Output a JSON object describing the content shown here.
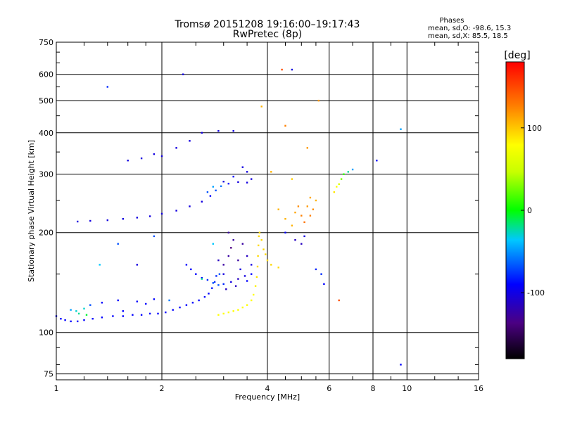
{
  "chart_data": {
    "type": "scatter",
    "title": "Tromsø 20151208 19:16:00–19:17:43",
    "subtitle": "RwPretec (8p)",
    "xlabel": "Frequency [MHz]",
    "ylabel": "Stationary phase Virtual Height [km]",
    "x_scale": "log",
    "y_scale": "log",
    "xlim": [
      1,
      16
    ],
    "ylim": [
      72,
      750
    ],
    "x_ticks": [
      1,
      2,
      4,
      6,
      8,
      10,
      16
    ],
    "x_tick_labels": [
      "1",
      "2",
      "4",
      "6",
      "8",
      "10",
      "16"
    ],
    "y_ticks": [
      75,
      100,
      200,
      300,
      400,
      500,
      600,
      750
    ],
    "y_tick_labels": [
      "75",
      "100",
      "200",
      "300",
      "400",
      "500",
      "600",
      "750"
    ],
    "grid": true,
    "stats": {
      "title": "Phases",
      "line1": "mean, sd,O:  -98.6, 15.3",
      "line2": "mean, sd,X:   85.5, 18.5"
    },
    "colorbar": {
      "label": "[deg]",
      "range": [
        -180,
        180
      ],
      "ticks": [
        100,
        0,
        -100
      ],
      "tick_labels": [
        "100",
        "0",
        "-100"
      ]
    },
    "series": [
      {
        "points": [
          [
            1.0,
            112,
            -100
          ],
          [
            1.03,
            110,
            -100
          ],
          [
            1.06,
            109,
            -100
          ],
          [
            1.1,
            108,
            -100
          ],
          [
            1.15,
            108,
            -100
          ],
          [
            1.2,
            109,
            -100
          ],
          [
            1.27,
            110,
            -100
          ],
          [
            1.35,
            111,
            -100
          ],
          [
            1.45,
            112,
            -100
          ],
          [
            1.55,
            112,
            -100
          ],
          [
            1.65,
            113,
            -100
          ],
          [
            1.75,
            113,
            -100
          ],
          [
            1.85,
            114,
            -100
          ],
          [
            1.95,
            114,
            -100
          ],
          [
            2.05,
            115,
            -100
          ],
          [
            2.15,
            117,
            -100
          ],
          [
            2.25,
            119,
            -100
          ],
          [
            2.35,
            121,
            -100
          ],
          [
            2.45,
            123,
            -100
          ],
          [
            2.55,
            125,
            -100
          ],
          [
            2.65,
            128,
            -100
          ],
          [
            2.72,
            131,
            -100
          ],
          [
            2.78,
            136,
            -95
          ],
          [
            2.83,
            142,
            -90
          ],
          [
            2.86,
            148,
            -90
          ],
          [
            1.1,
            117,
            -60
          ],
          [
            1.14,
            116,
            -40
          ],
          [
            1.2,
            118,
            -40
          ],
          [
            1.25,
            121,
            -80
          ],
          [
            1.35,
            123,
            -100
          ],
          [
            1.5,
            125,
            -100
          ],
          [
            1.7,
            124,
            -100
          ],
          [
            1.9,
            126,
            -100
          ],
          [
            1.16,
            114,
            -30
          ],
          [
            1.22,
            113,
            -10
          ],
          [
            1.55,
            116,
            -100
          ],
          [
            1.8,
            122,
            -100
          ],
          [
            2.35,
            160,
            -100
          ],
          [
            2.42,
            155,
            -100
          ],
          [
            2.5,
            150,
            -100
          ],
          [
            2.6,
            146,
            -100
          ],
          [
            2.7,
            144,
            -90
          ],
          [
            2.8,
            141,
            -80
          ],
          [
            2.9,
            139,
            -80
          ],
          [
            3.0,
            140,
            -90
          ],
          [
            3.15,
            142,
            -110
          ],
          [
            3.3,
            145,
            -120
          ],
          [
            3.45,
            148,
            -110
          ],
          [
            3.6,
            150,
            -100
          ],
          [
            3.05,
            135,
            -120
          ],
          [
            3.25,
            138,
            -120
          ],
          [
            3.5,
            143,
            -100
          ],
          [
            2.92,
            150,
            -80
          ],
          [
            3.0,
            160,
            -130
          ],
          [
            3.1,
            170,
            -130
          ],
          [
            3.15,
            180,
            -140
          ],
          [
            3.2,
            190,
            -130
          ],
          [
            3.1,
            200,
            -130
          ],
          [
            3.3,
            165,
            -130
          ],
          [
            3.35,
            155,
            -110
          ],
          [
            3.0,
            150,
            -110
          ],
          [
            2.9,
            165,
            -120
          ],
          [
            3.4,
            185,
            -130
          ],
          [
            3.5,
            170,
            -120
          ],
          [
            3.6,
            160,
            -110
          ],
          [
            1.15,
            216,
            -110
          ],
          [
            1.25,
            217,
            -110
          ],
          [
            1.4,
            218,
            -110
          ],
          [
            1.55,
            220,
            -110
          ],
          [
            1.7,
            222,
            -110
          ],
          [
            1.85,
            224,
            -110
          ],
          [
            2.0,
            228,
            -110
          ],
          [
            2.2,
            233,
            -110
          ],
          [
            2.4,
            240,
            -110
          ],
          [
            2.6,
            248,
            -110
          ],
          [
            2.75,
            258,
            -100
          ],
          [
            2.85,
            268,
            -80
          ],
          [
            2.95,
            276,
            -70
          ],
          [
            3.1,
            281,
            -100
          ],
          [
            3.3,
            284,
            -110
          ],
          [
            3.5,
            283,
            -110
          ],
          [
            3.6,
            290,
            -110
          ],
          [
            3.5,
            305,
            -110
          ],
          [
            3.4,
            315,
            -110
          ],
          [
            3.2,
            295,
            -100
          ],
          [
            3.0,
            285,
            -110
          ],
          [
            2.8,
            275,
            -60
          ],
          [
            2.7,
            265,
            -80
          ],
          [
            1.6,
            330,
            -110
          ],
          [
            1.75,
            335,
            -110
          ],
          [
            1.9,
            345,
            -110
          ],
          [
            2.0,
            340,
            -110
          ],
          [
            2.2,
            360,
            -110
          ],
          [
            2.4,
            378,
            -110
          ],
          [
            2.6,
            400,
            -110
          ],
          [
            2.9,
            405,
            -110
          ],
          [
            2.9,
            113,
            80
          ],
          [
            3.0,
            114,
            80
          ],
          [
            3.1,
            115,
            80
          ],
          [
            3.2,
            116,
            80
          ],
          [
            3.3,
            117,
            80
          ],
          [
            3.4,
            119,
            80
          ],
          [
            3.5,
            121,
            80
          ],
          [
            3.6,
            125,
            80
          ],
          [
            3.65,
            130,
            80
          ],
          [
            3.7,
            138,
            85
          ],
          [
            3.73,
            147,
            90
          ],
          [
            3.75,
            158,
            95
          ],
          [
            3.76,
            170,
            95
          ],
          [
            3.77,
            183,
            95
          ],
          [
            3.78,
            195,
            95
          ],
          [
            3.8,
            200,
            95
          ],
          [
            3.9,
            178,
            95
          ],
          [
            4.0,
            165,
            95
          ],
          [
            4.1,
            160,
            95
          ],
          [
            4.3,
            157,
            95
          ],
          [
            3.85,
            190,
            95
          ],
          [
            3.95,
            172,
            95
          ],
          [
            4.3,
            235,
            110
          ],
          [
            4.5,
            220,
            110
          ],
          [
            4.7,
            210,
            110
          ],
          [
            4.8,
            230,
            115
          ],
          [
            4.9,
            240,
            125
          ],
          [
            5.0,
            225,
            130
          ],
          [
            5.1,
            215,
            135
          ],
          [
            5.2,
            240,
            120
          ],
          [
            5.3,
            255,
            115
          ],
          [
            5.4,
            235,
            125
          ],
          [
            5.5,
            250,
            110
          ],
          [
            5.3,
            225,
            130
          ],
          [
            4.5,
            200,
            -100
          ],
          [
            4.8,
            190,
            -120
          ],
          [
            5.0,
            185,
            -120
          ],
          [
            5.1,
            195,
            -110
          ],
          [
            5.5,
            155,
            -90
          ],
          [
            5.7,
            150,
            -90
          ],
          [
            6.2,
            265,
            90
          ],
          [
            6.4,
            280,
            60
          ],
          [
            6.5,
            290,
            30
          ],
          [
            6.6,
            300,
            10
          ],
          [
            6.8,
            305,
            -30
          ],
          [
            7.0,
            310,
            -60
          ],
          [
            6.3,
            275,
            80
          ],
          [
            1.4,
            550,
            -90
          ],
          [
            2.3,
            600,
            -110
          ],
          [
            3.2,
            405,
            -110
          ],
          [
            4.7,
            620,
            -110
          ],
          [
            4.4,
            620,
            150
          ],
          [
            5.6,
            500,
            120
          ],
          [
            5.2,
            360,
            120
          ],
          [
            4.5,
            420,
            130
          ],
          [
            9.6,
            410,
            -60
          ],
          [
            9.6,
            80,
            -100
          ],
          [
            5.8,
            140,
            -100
          ],
          [
            6.4,
            125,
            150
          ],
          [
            4.1,
            305,
            110
          ],
          [
            4.7,
            290,
            100
          ],
          [
            3.85,
            480,
            110
          ],
          [
            8.2,
            330,
            -100
          ],
          [
            2.8,
            185,
            -50
          ],
          [
            1.5,
            185,
            -80
          ],
          [
            1.9,
            195,
            -80
          ],
          [
            1.7,
            160,
            -110
          ],
          [
            2.6,
            145,
            -30
          ],
          [
            2.1,
            125,
            -70
          ],
          [
            1.33,
            160,
            -50
          ]
        ]
      }
    ]
  }
}
